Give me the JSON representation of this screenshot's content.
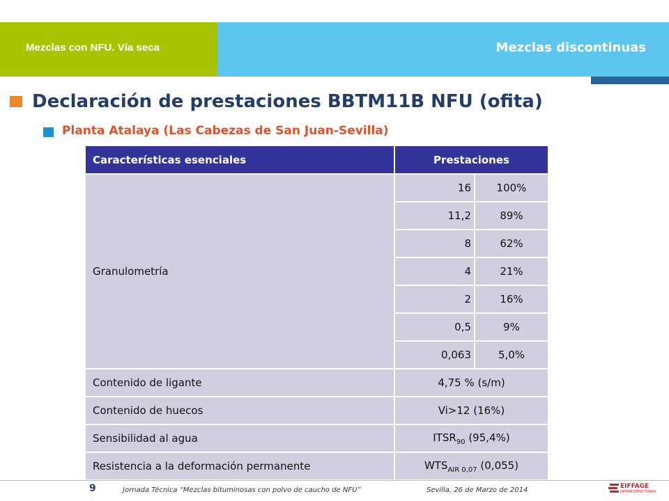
{
  "header": {
    "left_label": "Mezclas con NFU. Vía seca",
    "right_label": "Mezclas discontinuas",
    "colors": {
      "green": "#a9c300",
      "blue": "#5cc6ee",
      "stripe": "#2a6496"
    }
  },
  "title": "Declaración de prestaciones BBTM11B NFU (ofita)",
  "subtitle": "Planta Atalaya (Las Cabezas de San Juan-Sevilla)",
  "table": {
    "headers": [
      "Características esenciales",
      "Prestaciones"
    ],
    "granulometria": {
      "label": "Granulometría",
      "rows": [
        {
          "sieve": "16",
          "pass": "100%"
        },
        {
          "sieve": "11,2",
          "pass": "89%"
        },
        {
          "sieve": "8",
          "pass": "62%"
        },
        {
          "sieve": "4",
          "pass": "21%"
        },
        {
          "sieve": "2",
          "pass": "16%"
        },
        {
          "sieve": "0,5",
          "pass": "9%"
        },
        {
          "sieve": "0,063",
          "pass": "5,0%"
        }
      ]
    },
    "ligante": {
      "label": "Contenido de ligante",
      "value": "4,75 % (s/m)"
    },
    "huecos": {
      "label": "Contenido de huecos",
      "value": "Vi>12 (16%)"
    },
    "agua": {
      "label": "Sensibilidad al agua",
      "value_main": "ITSR",
      "value_sub": "90",
      "value_rest": " (95,4%)"
    },
    "deformacion": {
      "label": "Resistencia a la deformación permanente",
      "value_main": "WTS",
      "value_sub": "AIR 0,07",
      "value_rest": " (0,055)"
    },
    "colors": {
      "header_bg": "#333399",
      "cell_bg": "#cfcfe0"
    }
  },
  "footer": {
    "page_number": "9",
    "event": "Jornada Técnica “Mezclas bituminosas con polvo de caucho de NFU”",
    "place_date": "Sevilla, 26 de Marzo de 2014",
    "logo_text": "EIFFAGE",
    "logo_sub": "INFRAESTRUCTURAS"
  }
}
